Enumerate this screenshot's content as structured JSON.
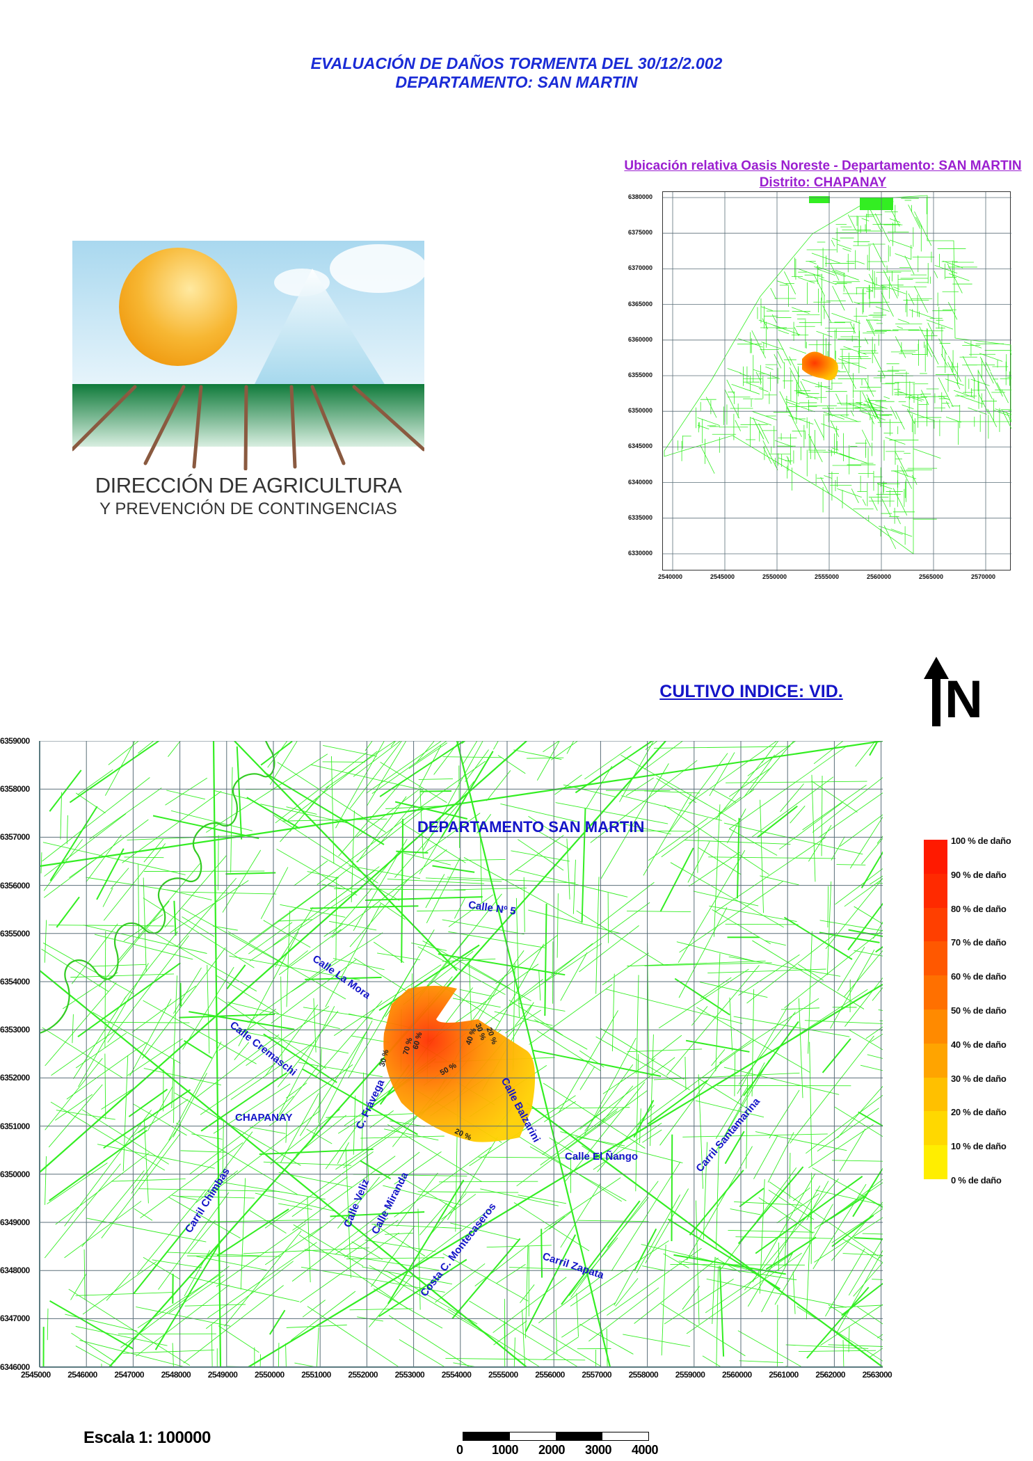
{
  "header": {
    "title_line1": "EVALUACIÓN DE DAÑOS TORMENTA DEL 30/12/2.002",
    "title_line2": "DEPARTAMENTO: SAN  MARTIN"
  },
  "logo": {
    "line1": "DIRECCIÓN DE AGRICULTURA",
    "line2": "Y PREVENCIÓN DE CONTINGENCIAS"
  },
  "inset": {
    "title_line1": "Ubicación relativa Oasis Noreste - Departamento: SAN  MARTIN",
    "title_line2": "Distrito:  CHAPANAY",
    "y_ticks": [
      "6380000",
      "6375000",
      "6370000",
      "6365000",
      "6360000",
      "6355000",
      "6350000",
      "6345000",
      "6340000",
      "6335000",
      "6330000"
    ],
    "x_ticks": [
      "2540000",
      "2545000",
      "2550000",
      "2555000",
      "2560000",
      "2565000",
      "2570000"
    ],
    "network_color": "#33ee22"
  },
  "crop_index": "CULTIVO INDICE: VID.",
  "north_arrow": {
    "label": "N",
    "icon": "north-arrow-icon"
  },
  "main_map": {
    "y_ticks": [
      "6359000",
      "6358000",
      "6357000",
      "6356000",
      "6355000",
      "6354000",
      "6353000",
      "6352000",
      "6351000",
      "6350000",
      "6349000",
      "6348000",
      "6347000",
      "6346000"
    ],
    "x_ticks": [
      "2545000",
      "2546000",
      "2547000",
      "2548000",
      "2549000",
      "2550000",
      "2551000",
      "2552000",
      "2553000",
      "2554000",
      "2555000",
      "2556000",
      "2557000",
      "2558000",
      "2559000",
      "2560000",
      "2561000",
      "2562000",
      "2563000"
    ],
    "department_label": "DEPARTAMENTO  SAN  MARTIN",
    "streets": {
      "calle_n5": "Calle  Nº 5",
      "la_mora": "Calle La Mora",
      "cremaschi": "Calle Cremaschi",
      "chapanay": "CHAPANAY",
      "fravega": "C. Frávega",
      "balzarini": "Calle Balzarini",
      "el_nango": "Calle El Ñango",
      "santamarina": "Carril Santamarina",
      "chimbas": "Carril Chimbas",
      "veliz": "Calle Veliz",
      "miranda": "Calle Miranda",
      "montecaseros": "Costa C. Montecaseros",
      "zapata": "Carril Zapata"
    },
    "damage_labels": {
      "p30_w": "30 %",
      "p70": "70 %",
      "p60": "60 %",
      "p50": "50 %",
      "p40": "40 %",
      "p30_e": "30 %",
      "p20_e": "20 %",
      "p20_s": "20 %"
    },
    "network_color": "#33ee22",
    "grid_color": "#5a6e78"
  },
  "legend": {
    "items": [
      {
        "label": "100 % de daño",
        "color": "#ff1a00"
      },
      {
        "label": "90 % de daño",
        "color": "#ff2a00"
      },
      {
        "label": "80 % de daño",
        "color": "#ff3f00"
      },
      {
        "label": "70 % de daño",
        "color": "#ff5800"
      },
      {
        "label": "60 % de daño",
        "color": "#ff7000"
      },
      {
        "label": "50 % de daño",
        "color": "#ff8a00"
      },
      {
        "label": "40 % de daño",
        "color": "#ffa400"
      },
      {
        "label": "30 % de daño",
        "color": "#ffc000"
      },
      {
        "label": "20 % de daño",
        "color": "#ffd800"
      },
      {
        "label": "10 % de daño",
        "color": "#ffee00"
      },
      {
        "label": "0 % de daño",
        "color": "#ffff10"
      }
    ]
  },
  "scale": {
    "text": "Escala 1: 100000",
    "bar_labels": [
      "0",
      "1000",
      "2000",
      "3000",
      "4000"
    ]
  }
}
